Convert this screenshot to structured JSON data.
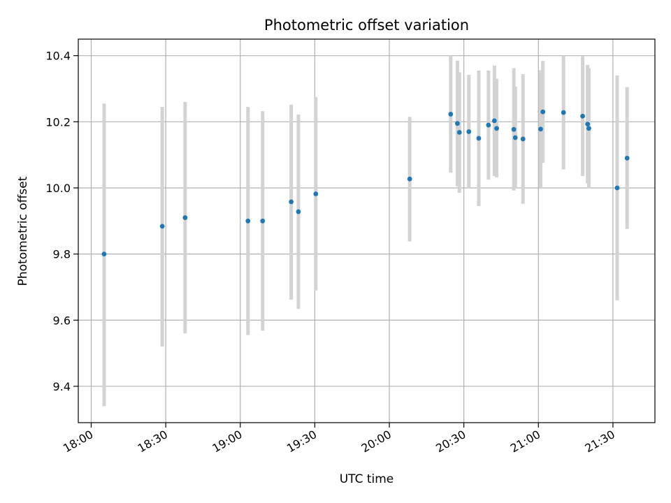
{
  "chart_data": {
    "type": "scatter",
    "title": "Photometric offset variation",
    "xlabel": "UTC time",
    "ylabel": "Photometric offset",
    "x_tick_labels": [
      "18:00",
      "18:30",
      "19:00",
      "19:30",
      "20:00",
      "20:30",
      "21:00",
      "21:30"
    ],
    "x_tick_minutes": [
      1080,
      1110,
      1140,
      1170,
      1200,
      1230,
      1260,
      1290
    ],
    "y_tick_labels": [
      "9.4",
      "9.6",
      "9.8",
      "10.0",
      "10.2",
      "10.4"
    ],
    "y_tick_values": [
      9.4,
      9.6,
      9.8,
      10.0,
      10.2,
      10.4
    ],
    "xlim_minutes": [
      1074.8,
      1306.9
    ],
    "ylim": [
      9.29,
      10.45
    ],
    "grid": true,
    "marker_color": "#1f77b4",
    "errorbar_color": "#d3d3d3",
    "points": [
      {
        "t": 1085.2,
        "y": 9.8,
        "lo": 9.34,
        "hi": 10.255
      },
      {
        "t": 1108.6,
        "y": 9.884,
        "lo": 9.52,
        "hi": 10.245
      },
      {
        "t": 1117.8,
        "y": 9.91,
        "lo": 9.56,
        "hi": 10.26
      },
      {
        "t": 1143.1,
        "y": 9.9,
        "lo": 9.555,
        "hi": 10.245
      },
      {
        "t": 1149.0,
        "y": 9.9,
        "lo": 9.568,
        "hi": 10.232
      },
      {
        "t": 1160.5,
        "y": 9.958,
        "lo": 9.662,
        "hi": 10.252
      },
      {
        "t": 1163.4,
        "y": 9.928,
        "lo": 9.634,
        "hi": 10.222
      },
      {
        "t": 1170.4,
        "y": 9.982,
        "lo": 9.69,
        "hi": 10.275
      },
      {
        "t": 1208.2,
        "y": 10.027,
        "lo": 9.838,
        "hi": 10.215
      },
      {
        "t": 1224.7,
        "y": 10.223,
        "lo": 10.046,
        "hi": 10.4
      },
      {
        "t": 1227.4,
        "y": 10.195,
        "lo": 10.005,
        "hi": 10.385
      },
      {
        "t": 1228.2,
        "y": 10.168,
        "lo": 9.985,
        "hi": 10.35
      },
      {
        "t": 1232.0,
        "y": 10.17,
        "lo": 9.998,
        "hi": 10.342
      },
      {
        "t": 1236.0,
        "y": 10.15,
        "lo": 9.945,
        "hi": 10.355
      },
      {
        "t": 1239.9,
        "y": 10.19,
        "lo": 10.025,
        "hi": 10.355
      },
      {
        "t": 1242.3,
        "y": 10.203,
        "lo": 10.036,
        "hi": 10.37
      },
      {
        "t": 1243.2,
        "y": 10.18,
        "lo": 10.032,
        "hi": 10.33
      },
      {
        "t": 1250.1,
        "y": 10.177,
        "lo": 9.992,
        "hi": 10.362
      },
      {
        "t": 1250.7,
        "y": 10.152,
        "lo": 9.998,
        "hi": 10.306
      },
      {
        "t": 1253.8,
        "y": 10.148,
        "lo": 9.952,
        "hi": 10.344
      },
      {
        "t": 1260.9,
        "y": 10.178,
        "lo": 10.0,
        "hi": 10.356
      },
      {
        "t": 1261.8,
        "y": 10.23,
        "lo": 10.076,
        "hi": 10.384
      },
      {
        "t": 1270.1,
        "y": 10.228,
        "lo": 10.056,
        "hi": 10.4
      },
      {
        "t": 1277.8,
        "y": 10.217,
        "lo": 10.036,
        "hi": 10.398
      },
      {
        "t": 1279.8,
        "y": 10.193,
        "lo": 10.014,
        "hi": 10.372
      },
      {
        "t": 1280.3,
        "y": 10.18,
        "lo": 9.998,
        "hi": 10.362
      },
      {
        "t": 1291.7,
        "y": 10.0,
        "lo": 9.66,
        "hi": 10.34
      },
      {
        "t": 1295.7,
        "y": 10.09,
        "lo": 9.876,
        "hi": 10.305
      }
    ]
  }
}
